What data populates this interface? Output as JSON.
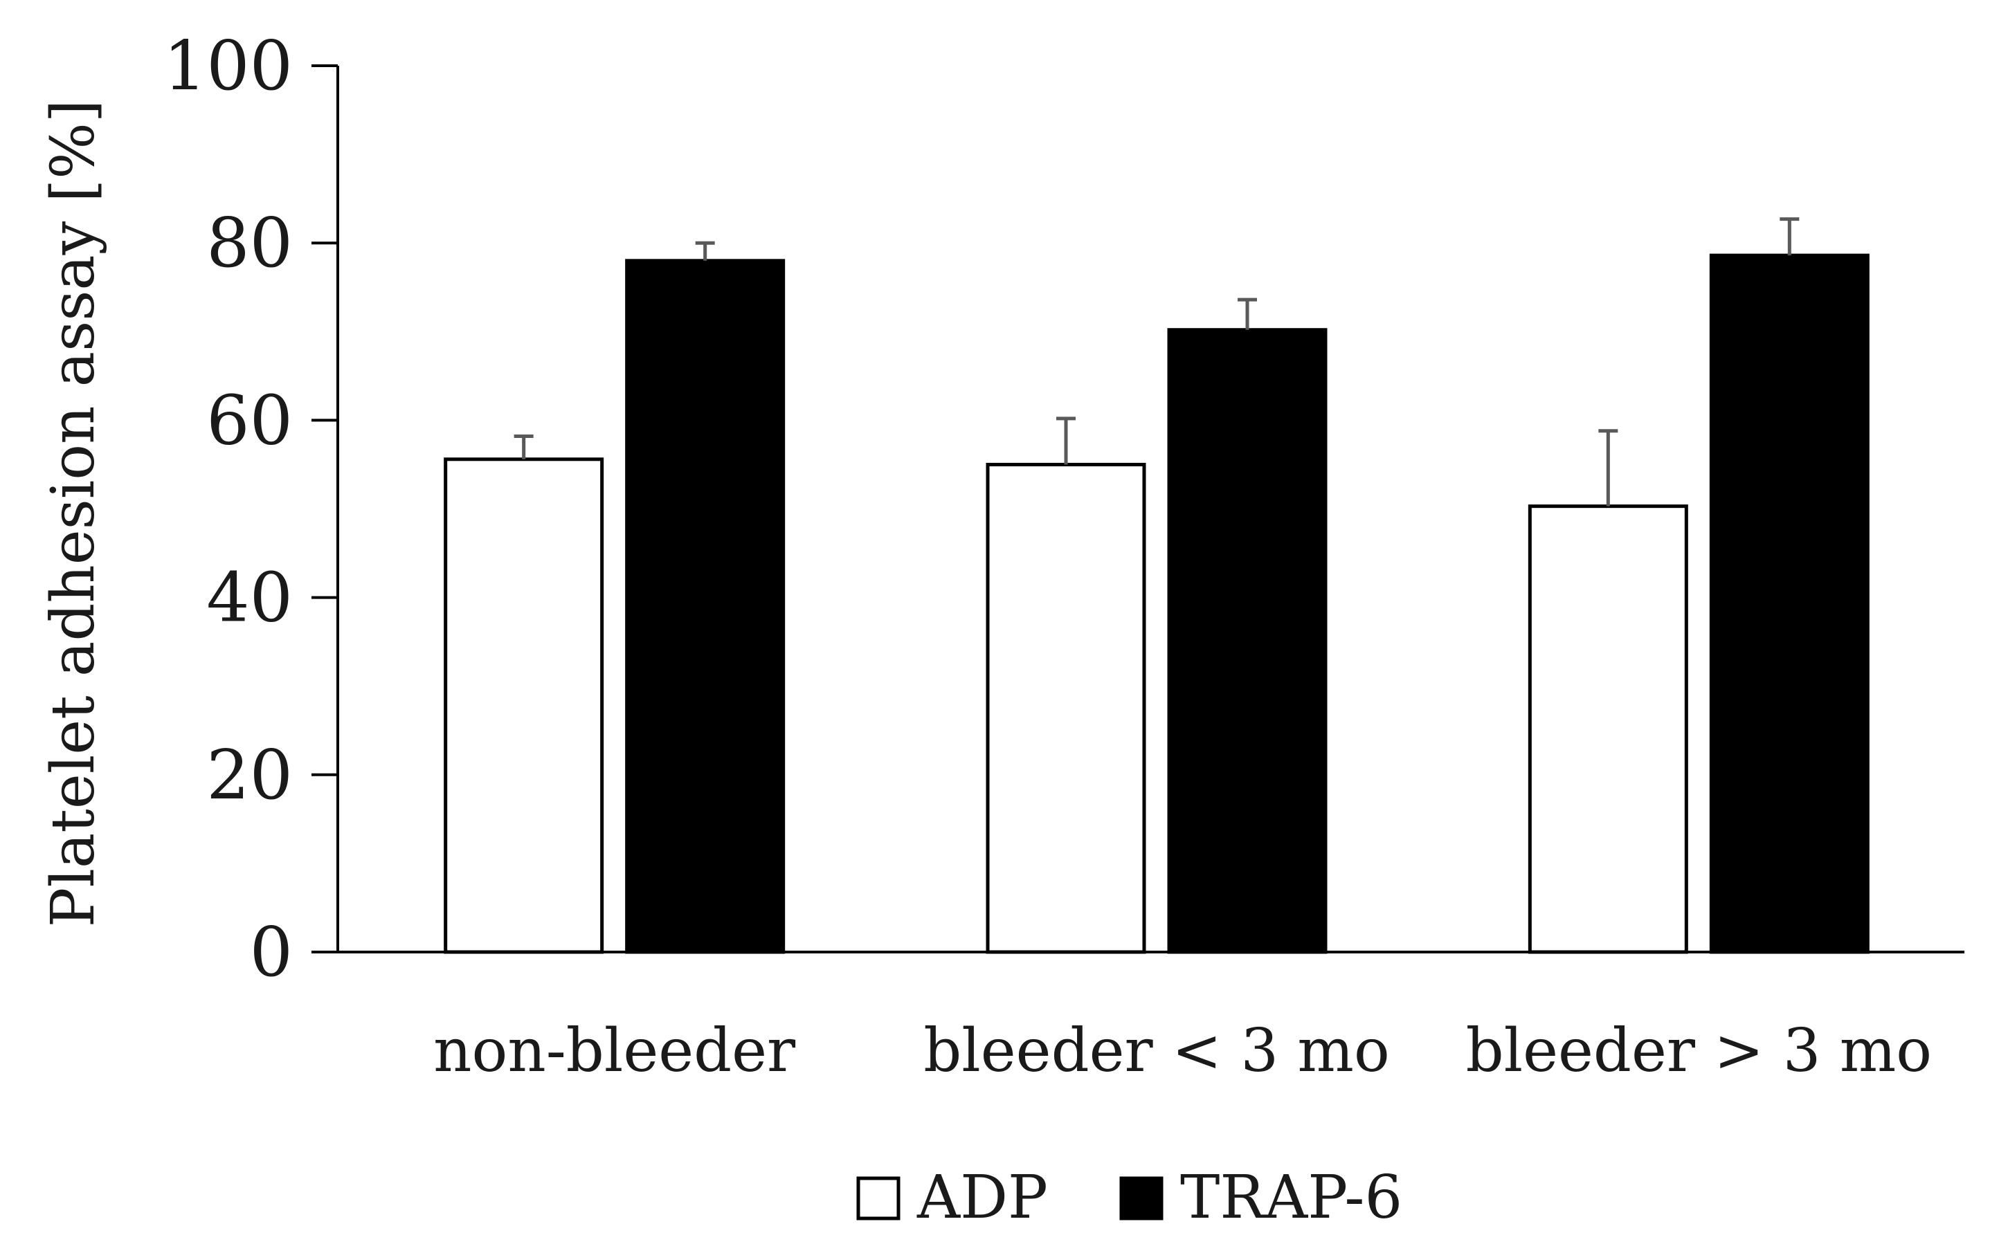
{
  "chart_data": {
    "type": "bar",
    "title": "",
    "xlabel": "",
    "ylabel": "Platelet adhesion assay [%]",
    "ylim": [
      0,
      100
    ],
    "yticks": [
      0,
      20,
      40,
      60,
      80,
      100
    ],
    "categories": [
      "non-bleeder",
      "bleeder < 3 mo",
      "bleeder > 3 mo"
    ],
    "series": [
      {
        "name": "ADP",
        "values": [
          55.6,
          55.0,
          50.3
        ],
        "errors": [
          2.6,
          5.2,
          8.5
        ],
        "fill": "#ffffff",
        "stroke": "#000000"
      },
      {
        "name": "TRAP-6",
        "values": [
          78.0,
          70.2,
          78.6
        ],
        "errors": [
          2.0,
          3.4,
          4.1
        ],
        "fill": "#000000",
        "stroke": "#000000"
      }
    ],
    "error_bar_color": "#595959",
    "axis_color": "#000000",
    "legend": {
      "position": "bottom-center",
      "items": [
        "ADP",
        "TRAP-6"
      ]
    }
  }
}
